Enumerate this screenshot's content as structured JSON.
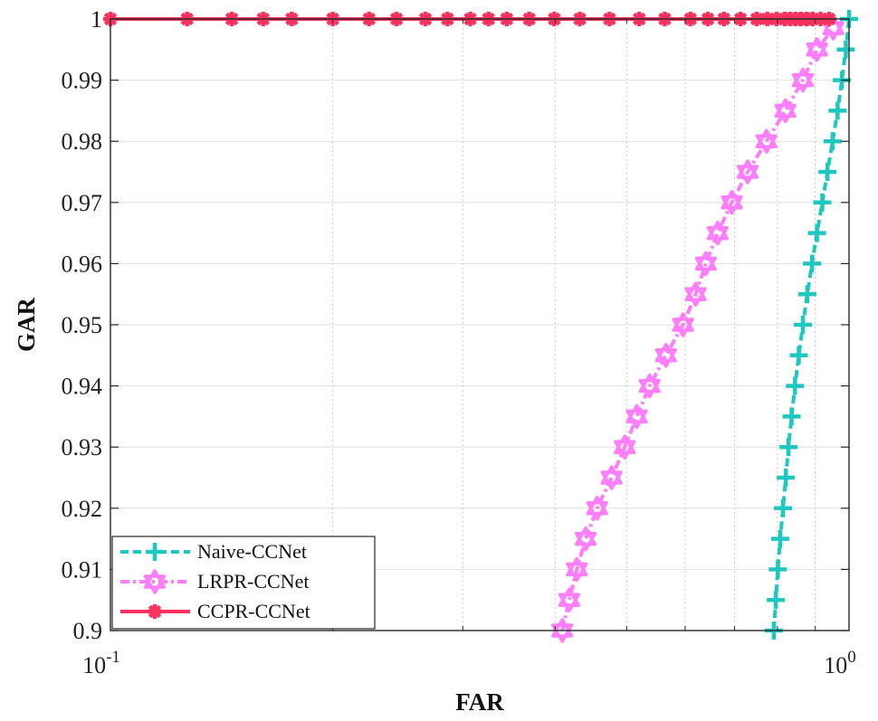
{
  "chart_data": {
    "type": "line",
    "title": "",
    "xlabel": "FAR",
    "ylabel": "GAR",
    "xscale": "log",
    "xlim": [
      0.1,
      1.0
    ],
    "ylim": [
      0.9,
      1.0
    ],
    "grid": true,
    "legend_position": "bottom-left",
    "x_ticks": [
      {
        "value": 0.1,
        "base": "10",
        "exp": "-1"
      },
      {
        "value": 1.0,
        "base": "10",
        "exp": "0"
      }
    ],
    "y_ticks": [
      {
        "value": 0.9,
        "label": "0.9"
      },
      {
        "value": 0.91,
        "label": "0.91"
      },
      {
        "value": 0.92,
        "label": "0.92"
      },
      {
        "value": 0.93,
        "label": "0.93"
      },
      {
        "value": 0.94,
        "label": "0.94"
      },
      {
        "value": 0.95,
        "label": "0.95"
      },
      {
        "value": 0.96,
        "label": "0.96"
      },
      {
        "value": 0.97,
        "label": "0.97"
      },
      {
        "value": 0.98,
        "label": "0.98"
      },
      {
        "value": 0.99,
        "label": "0.99"
      },
      {
        "value": 1.0,
        "label": "1"
      }
    ],
    "series": [
      {
        "name": "Naive-CCNet",
        "color": "#1fc7c1",
        "marker": "plus",
        "line_style": "dashed",
        "points": [
          [
            0.791,
            0.9
          ],
          [
            0.796,
            0.905
          ],
          [
            0.801,
            0.91
          ],
          [
            0.807,
            0.915
          ],
          [
            0.814,
            0.92
          ],
          [
            0.821,
            0.925
          ],
          [
            0.828,
            0.93
          ],
          [
            0.836,
            0.935
          ],
          [
            0.845,
            0.94
          ],
          [
            0.855,
            0.945
          ],
          [
            0.866,
            0.95
          ],
          [
            0.878,
            0.955
          ],
          [
            0.891,
            0.96
          ],
          [
            0.905,
            0.965
          ],
          [
            0.92,
            0.97
          ],
          [
            0.935,
            0.975
          ],
          [
            0.95,
            0.98
          ],
          [
            0.965,
            0.985
          ],
          [
            0.978,
            0.99
          ],
          [
            0.99,
            0.995
          ],
          [
            1.0,
            1.0
          ]
        ]
      },
      {
        "name": "LRPR-CCNet",
        "color": "#fd7dfa",
        "marker": "hexagram",
        "line_style": "dashdot",
        "points": [
          [
            0.409,
            0.9
          ],
          [
            0.418,
            0.905
          ],
          [
            0.428,
            0.91
          ],
          [
            0.44,
            0.915
          ],
          [
            0.456,
            0.92
          ],
          [
            0.477,
            0.925
          ],
          [
            0.497,
            0.93
          ],
          [
            0.516,
            0.935
          ],
          [
            0.537,
            0.94
          ],
          [
            0.565,
            0.945
          ],
          [
            0.596,
            0.95
          ],
          [
            0.62,
            0.955
          ],
          [
            0.64,
            0.96
          ],
          [
            0.664,
            0.965
          ],
          [
            0.694,
            0.97
          ],
          [
            0.729,
            0.975
          ],
          [
            0.773,
            0.98
          ],
          [
            0.82,
            0.985
          ],
          [
            0.866,
            0.99
          ],
          [
            0.905,
            0.995
          ],
          [
            0.952,
            0.9985
          ]
        ]
      },
      {
        "name": "CCPR-CCNet",
        "color": "#f7325f",
        "marker": "asterisk",
        "line_style": "solid",
        "points": [
          [
            0.1,
            1.0
          ],
          [
            0.127,
            1.0
          ],
          [
            0.146,
            1.0
          ],
          [
            0.161,
            1.0
          ],
          [
            0.176,
            1.0
          ],
          [
            0.2,
            1.0
          ],
          [
            0.224,
            1.0
          ],
          [
            0.244,
            1.0
          ],
          [
            0.267,
            1.0
          ],
          [
            0.286,
            1.0
          ],
          [
            0.307,
            1.0
          ],
          [
            0.325,
            1.0
          ],
          [
            0.344,
            1.0
          ],
          [
            0.369,
            1.0
          ],
          [
            0.399,
            1.0
          ],
          [
            0.432,
            1.0
          ],
          [
            0.474,
            1.0
          ],
          [
            0.52,
            1.0
          ],
          [
            0.563,
            1.0
          ],
          [
            0.61,
            1.0
          ],
          [
            0.644,
            1.0
          ],
          [
            0.677,
            1.0
          ],
          [
            0.713,
            1.0
          ],
          [
            0.75,
            1.0
          ],
          [
            0.775,
            1.0
          ],
          [
            0.798,
            1.0
          ],
          [
            0.818,
            1.0
          ],
          [
            0.832,
            1.0
          ],
          [
            0.846,
            1.0
          ],
          [
            0.86,
            1.0
          ],
          [
            0.876,
            1.0
          ],
          [
            0.893,
            1.0
          ],
          [
            0.915,
            1.0
          ],
          [
            0.94,
            1.0
          ]
        ]
      }
    ]
  }
}
